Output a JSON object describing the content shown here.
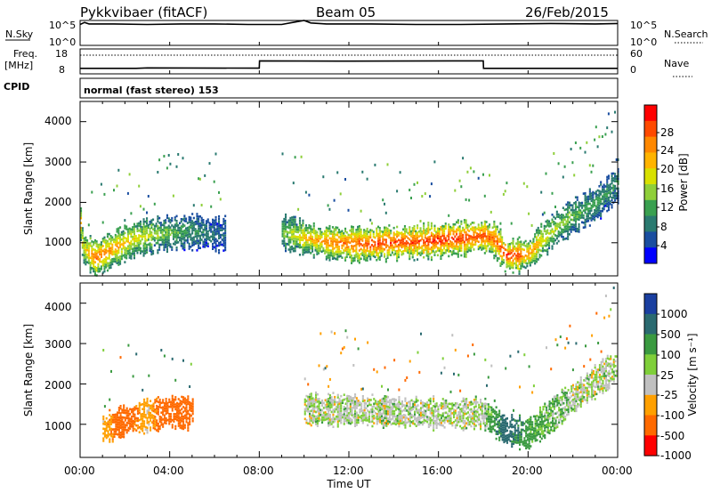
{
  "header": {
    "station": "Pykkvibaer (fitACF)",
    "beam": "Beam 05",
    "date": "26/Feb/2015"
  },
  "sky_panel": {
    "left_label": "N.Sky",
    "left_ticks": [
      "10^5",
      "10^0"
    ],
    "right_ticks": [
      "10^5",
      "10^0"
    ],
    "right_label": "N.Search"
  },
  "freq_panel": {
    "left_label": "Freq.",
    "left_unit": "[MHz]",
    "left_ticks": [
      "18",
      "8"
    ],
    "right_ticks": [
      "60",
      "0"
    ],
    "right_label": "Nave"
  },
  "cpid_panel": {
    "left_label": "CPID",
    "mode_text": "normal (fast stereo) 153"
  },
  "power_panel": {
    "ylabel": "Slant Range [km]",
    "yticks": [
      "4000",
      "3000",
      "2000",
      "1000"
    ],
    "colorbar_title": "Power [dB]",
    "colorbar_ticks": [
      "28",
      "24",
      "20",
      "16",
      "12",
      "8",
      "4"
    ],
    "colorbar_colors": [
      "#ff0000",
      "#ff4a00",
      "#ff8800",
      "#ffb400",
      "#d8e000",
      "#8fcf3a",
      "#3aa050",
      "#2a7a70",
      "#1a4ea0",
      "#0000ff"
    ]
  },
  "velocity_panel": {
    "ylabel": "Slant Range [km]",
    "yticks": [
      "4000",
      "3000",
      "2000",
      "1000"
    ],
    "colorbar_title": "Velocity [m s⁻¹]",
    "colorbar_ticks": [
      "1000",
      "500",
      "100",
      "25",
      "-25",
      "-100",
      "-500",
      "-1000"
    ],
    "colorbar_colors": [
      "#1a3fa0",
      "#2a6a70",
      "#3a9a40",
      "#7fcf3a",
      "#c0c0c0",
      "#ffa000",
      "#ff6a00",
      "#ff0000"
    ]
  },
  "xaxis": {
    "label": "Time UT",
    "ticks": [
      "00:00",
      "04:00",
      "08:00",
      "12:00",
      "16:00",
      "20:00",
      "00:00"
    ]
  },
  "chart_data": [
    {
      "type": "line",
      "title": "N.Sky / N.Search",
      "x_hours": [
        0,
        0.2,
        0.4,
        1.5,
        3.0,
        4.5,
        6.0,
        7.5,
        9.0,
        9.5,
        10.0,
        10.3,
        11.0,
        13.0,
        15.0,
        17.0,
        19.0,
        21.0,
        23.0,
        24.0
      ],
      "series": [
        {
          "values": [
            4.2,
            4.6,
            4.3,
            4.3,
            4.2,
            4.3,
            4.3,
            4.2,
            4.2,
            4.6,
            5.0,
            4.5,
            4.3,
            4.3,
            4.2,
            4.2,
            4.3,
            4.4,
            4.3,
            4.4
          ]
        }
      ],
      "yscale": "log",
      "ylim": [
        0,
        5
      ]
    },
    {
      "type": "line",
      "title": "Freq / Nave",
      "x_hours": [
        0,
        2.5,
        3.0,
        8.0,
        8.01,
        12.0,
        18.0,
        18.01,
        24.0
      ],
      "series": [
        {
          "values": [
            10.2,
            10.2,
            10.4,
            10.3,
            13.2,
            13.1,
            13.2,
            10.2,
            10.2
          ]
        },
        {
          "values": [
            45,
            45,
            45,
            45,
            45,
            45,
            45,
            45,
            45
          ]
        }
      ],
      "ylim_left": [
        8,
        18
      ],
      "ylim_right": [
        0,
        60
      ]
    },
    {
      "type": "heatmap",
      "title": "Power [dB]",
      "x_range_hours": [
        0,
        24
      ],
      "y_range_km": [
        180,
        4500
      ],
      "echo_regions": [
        {
          "x": [
            0,
            0.1,
            0.7,
            1.5,
            2.5,
            3.5,
            4.5,
            5.3,
            6.0,
            6.5
          ],
          "y": [
            1500,
            900,
            650,
            900,
            1150,
            1250,
            1300,
            1300,
            1250,
            1250
          ],
          "dB": [
            22,
            18,
            26,
            22,
            18,
            14,
            10,
            8,
            6,
            6
          ]
        },
        {
          "x": [
            9.0,
            10.0,
            11.0,
            12.0,
            13.0,
            14.0,
            15.0,
            16.0,
            17.0,
            18.0,
            18.5,
            19.0,
            20.0,
            21.0,
            22.0,
            23.0,
            24.0
          ],
          "y": [
            1300,
            1150,
            1050,
            1000,
            1000,
            1050,
            1050,
            1100,
            1150,
            1200,
            1100,
            700,
            750,
            1300,
            1700,
            2000,
            2500
          ],
          "dB": [
            12,
            20,
            24,
            26,
            28,
            28,
            28,
            30,
            28,
            28,
            26,
            30,
            24,
            16,
            12,
            10,
            8
          ]
        }
      ],
      "clim": [
        0,
        30
      ]
    },
    {
      "type": "heatmap",
      "title": "Velocity [m s⁻¹]",
      "x_range_hours": [
        0,
        24
      ],
      "y_range_km": [
        180,
        4500
      ],
      "echo_regions": [
        {
          "x": [
            1,
            2,
            3,
            4,
            5
          ],
          "y": [
            900,
            1150,
            1250,
            1350,
            1300
          ],
          "v": [
            -50,
            -200,
            -20,
            -300,
            -200
          ]
        },
        {
          "x": [
            10,
            12,
            14,
            16,
            18,
            19,
            20,
            22,
            24
          ],
          "y": [
            1400,
            1400,
            1350,
            1300,
            1300,
            900,
            800,
            1700,
            2500
          ],
          "v": [
            0,
            0,
            0,
            0,
            0,
            150,
            50,
            0,
            0
          ]
        }
      ],
      "clim": [
        -1000,
        1000
      ]
    }
  ]
}
